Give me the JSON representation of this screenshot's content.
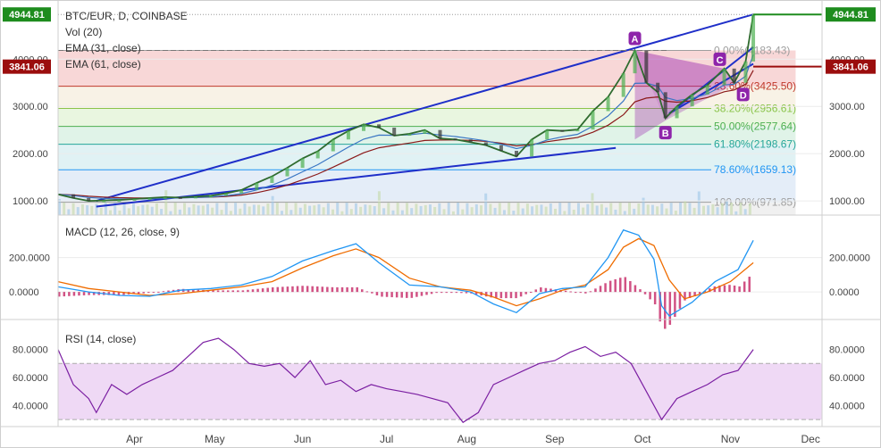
{
  "chart_data": {
    "type": "line",
    "symbol": "BTC/EUR, D, COINBASE",
    "indicators_main": [
      "Vol (20)",
      "EMA (31, close)",
      "EMA (61, close)"
    ],
    "price_axis": {
      "ticks": [
        1000,
        2000,
        3000,
        4000
      ],
      "tick_labels": [
        "1000.00",
        "2000.00",
        "3000.00",
        "4000.00"
      ],
      "range": [
        700,
        5100
      ]
    },
    "last_price": {
      "value": 4944.81,
      "label": "4944.81",
      "color": "#1e8c1e"
    },
    "marked_price": {
      "value": 3841.06,
      "label": "3841.06",
      "color": "#9b0d0d"
    },
    "fibonacci": [
      {
        "level": 0.0,
        "price": 4183.43,
        "label": "0.00%(4183.43)",
        "color": "#9e9e9e"
      },
      {
        "level": 23.6,
        "price": 3425.5,
        "label": "23.60%(3425.50)",
        "color": "#c0392b"
      },
      {
        "level": 38.2,
        "price": 2956.61,
        "label": "38.20%(2956.61)",
        "color": "#8bc34a"
      },
      {
        "level": 50.0,
        "price": 2577.64,
        "label": "50.00%(2577.64)",
        "color": "#4caf50"
      },
      {
        "level": 61.8,
        "price": 2198.67,
        "label": "61.80%(2198.67)",
        "color": "#26a69a"
      },
      {
        "level": 78.6,
        "price": 1659.13,
        "label": "78.60%(1659.13)",
        "color": "#2196f3"
      },
      {
        "level": 100.0,
        "price": 971.85,
        "label": "100.00%(971.85)",
        "color": "#9e9e9e"
      }
    ],
    "x_labels": [
      "Apr",
      "May",
      "Jun",
      "Jul",
      "Aug",
      "Sep",
      "Oct",
      "Nov",
      "Dec"
    ],
    "pattern_points": [
      {
        "label": "A",
        "t": 0.755,
        "price": 4183
      },
      {
        "label": "B",
        "t": 0.795,
        "price": 2700
      },
      {
        "label": "C",
        "t": 0.872,
        "price": 3800
      },
      {
        "label": "D",
        "t": 0.885,
        "price": 3470
      }
    ],
    "price_series": [
      [
        0.0,
        1140
      ],
      [
        0.02,
        1060
      ],
      [
        0.04,
        1000
      ],
      [
        0.06,
        1010
      ],
      [
        0.08,
        1020
      ],
      [
        0.1,
        1040
      ],
      [
        0.12,
        1060
      ],
      [
        0.14,
        1080
      ],
      [
        0.16,
        1070
      ],
      [
        0.18,
        1090
      ],
      [
        0.2,
        1110
      ],
      [
        0.22,
        1160
      ],
      [
        0.24,
        1230
      ],
      [
        0.26,
        1380
      ],
      [
        0.28,
        1520
      ],
      [
        0.3,
        1700
      ],
      [
        0.32,
        1900
      ],
      [
        0.34,
        2050
      ],
      [
        0.36,
        2300
      ],
      [
        0.38,
        2480
      ],
      [
        0.4,
        2620
      ],
      [
        0.42,
        2550
      ],
      [
        0.44,
        2380
      ],
      [
        0.46,
        2420
      ],
      [
        0.48,
        2500
      ],
      [
        0.5,
        2320
      ],
      [
        0.52,
        2300
      ],
      [
        0.54,
        2240
      ],
      [
        0.56,
        2180
      ],
      [
        0.58,
        2060
      ],
      [
        0.6,
        1940
      ],
      [
        0.62,
        2300
      ],
      [
        0.64,
        2500
      ],
      [
        0.66,
        2480
      ],
      [
        0.68,
        2510
      ],
      [
        0.7,
        2900
      ],
      [
        0.72,
        3200
      ],
      [
        0.74,
        3700
      ],
      [
        0.755,
        4183
      ],
      [
        0.77,
        3500
      ],
      [
        0.785,
        3300
      ],
      [
        0.795,
        2750
      ],
      [
        0.81,
        3000
      ],
      [
        0.83,
        3250
      ],
      [
        0.85,
        3450
      ],
      [
        0.872,
        3800
      ],
      [
        0.885,
        3500
      ],
      [
        0.9,
        3950
      ],
      [
        0.91,
        4944.81
      ]
    ],
    "macd": {
      "title": "MACD (12, 26, close, 9)",
      "ticks": [
        0,
        200
      ],
      "tick_labels": [
        "0.0000",
        "200.0000"
      ],
      "range": [
        -160,
        400
      ],
      "macd_series": [
        [
          0.0,
          30
        ],
        [
          0.04,
          0
        ],
        [
          0.08,
          -20
        ],
        [
          0.12,
          -25
        ],
        [
          0.16,
          10
        ],
        [
          0.2,
          20
        ],
        [
          0.24,
          40
        ],
        [
          0.28,
          90
        ],
        [
          0.32,
          180
        ],
        [
          0.36,
          240
        ],
        [
          0.39,
          280
        ],
        [
          0.42,
          170
        ],
        [
          0.46,
          40
        ],
        [
          0.5,
          30
        ],
        [
          0.54,
          0
        ],
        [
          0.57,
          -70
        ],
        [
          0.6,
          -120
        ],
        [
          0.63,
          -10
        ],
        [
          0.66,
          20
        ],
        [
          0.69,
          30
        ],
        [
          0.72,
          200
        ],
        [
          0.74,
          360
        ],
        [
          0.76,
          330
        ],
        [
          0.78,
          190
        ],
        [
          0.79,
          -80
        ],
        [
          0.8,
          -140
        ],
        [
          0.83,
          -60
        ],
        [
          0.86,
          60
        ],
        [
          0.89,
          130
        ],
        [
          0.91,
          300
        ]
      ],
      "signal_series": [
        [
          0.0,
          60
        ],
        [
          0.04,
          20
        ],
        [
          0.08,
          0
        ],
        [
          0.12,
          -20
        ],
        [
          0.16,
          -10
        ],
        [
          0.2,
          10
        ],
        [
          0.24,
          30
        ],
        [
          0.28,
          60
        ],
        [
          0.32,
          140
        ],
        [
          0.36,
          210
        ],
        [
          0.39,
          250
        ],
        [
          0.42,
          200
        ],
        [
          0.46,
          80
        ],
        [
          0.5,
          30
        ],
        [
          0.54,
          10
        ],
        [
          0.57,
          -30
        ],
        [
          0.6,
          -80
        ],
        [
          0.63,
          -40
        ],
        [
          0.66,
          10
        ],
        [
          0.69,
          40
        ],
        [
          0.72,
          130
        ],
        [
          0.74,
          260
        ],
        [
          0.76,
          310
        ],
        [
          0.78,
          270
        ],
        [
          0.8,
          70
        ],
        [
          0.82,
          -40
        ],
        [
          0.85,
          0
        ],
        [
          0.88,
          60
        ],
        [
          0.91,
          170
        ]
      ]
    },
    "rsi": {
      "title": "RSI (14, close)",
      "ticks": [
        40,
        60,
        80
      ],
      "tick_labels": [
        "40.0000",
        "60.0000",
        "80.0000"
      ],
      "range": [
        25,
        95
      ],
      "band": [
        30,
        70
      ],
      "series": [
        [
          0.0,
          80
        ],
        [
          0.02,
          55
        ],
        [
          0.04,
          45
        ],
        [
          0.05,
          35
        ],
        [
          0.07,
          55
        ],
        [
          0.09,
          48
        ],
        [
          0.11,
          55
        ],
        [
          0.13,
          60
        ],
        [
          0.15,
          65
        ],
        [
          0.17,
          75
        ],
        [
          0.19,
          85
        ],
        [
          0.21,
          88
        ],
        [
          0.23,
          80
        ],
        [
          0.25,
          70
        ],
        [
          0.27,
          68
        ],
        [
          0.29,
          70
        ],
        [
          0.31,
          60
        ],
        [
          0.33,
          72
        ],
        [
          0.35,
          55
        ],
        [
          0.37,
          58
        ],
        [
          0.39,
          50
        ],
        [
          0.41,
          55
        ],
        [
          0.43,
          52
        ],
        [
          0.45,
          50
        ],
        [
          0.47,
          48
        ],
        [
          0.49,
          45
        ],
        [
          0.51,
          42
        ],
        [
          0.53,
          28
        ],
        [
          0.55,
          35
        ],
        [
          0.57,
          55
        ],
        [
          0.59,
          60
        ],
        [
          0.61,
          65
        ],
        [
          0.63,
          70
        ],
        [
          0.65,
          72
        ],
        [
          0.67,
          78
        ],
        [
          0.69,
          82
        ],
        [
          0.71,
          75
        ],
        [
          0.73,
          78
        ],
        [
          0.75,
          70
        ],
        [
          0.77,
          50
        ],
        [
          0.79,
          30
        ],
        [
          0.81,
          45
        ],
        [
          0.83,
          50
        ],
        [
          0.85,
          55
        ],
        [
          0.87,
          62
        ],
        [
          0.89,
          65
        ],
        [
          0.91,
          80
        ]
      ]
    }
  }
}
